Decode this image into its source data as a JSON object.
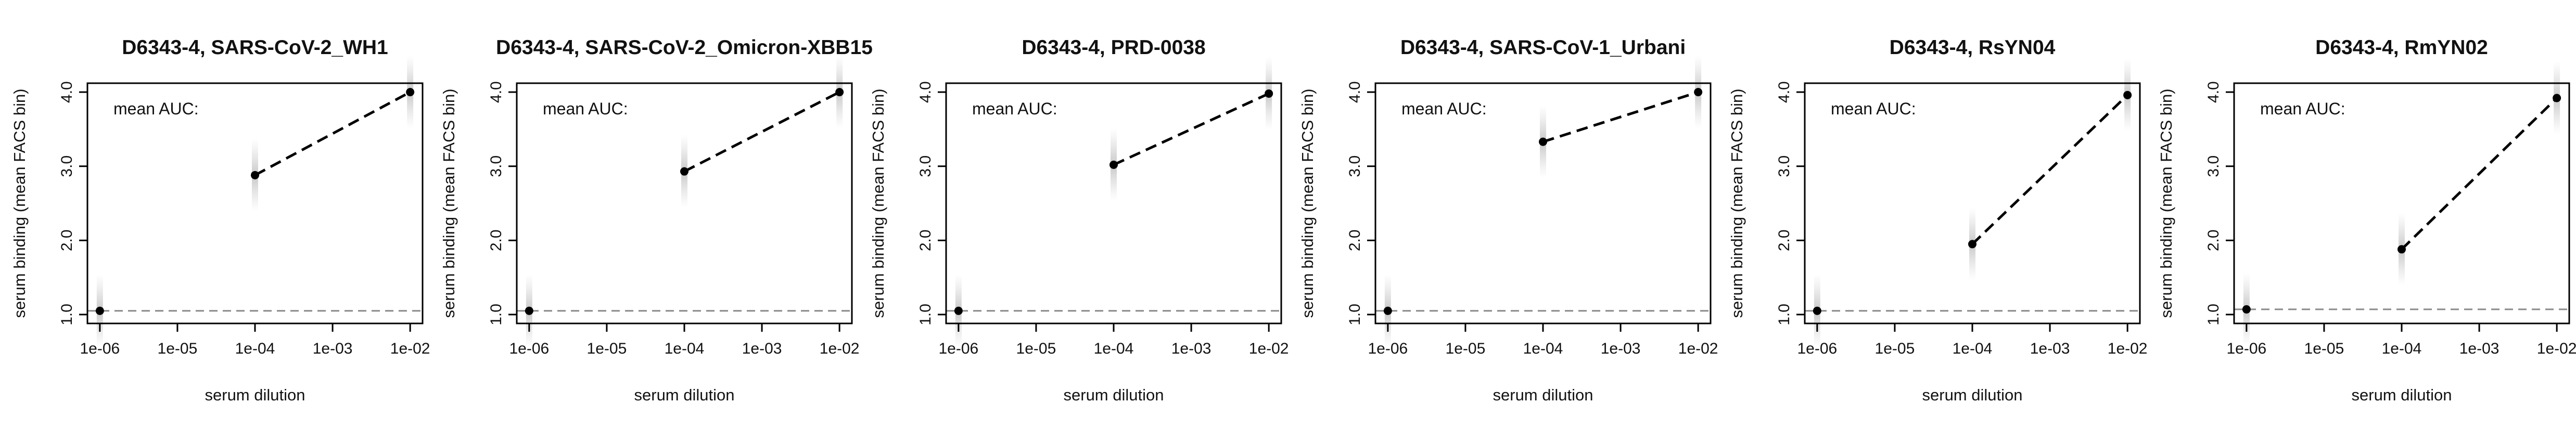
{
  "chart_data": [
    {
      "type": "line",
      "title": "D6343-4, SARS-CoV-2_WH1",
      "xlabel": "serum dilution",
      "ylabel": "serum binding (mean FACS bin)",
      "annotation": "mean AUC:",
      "x_scale": "log10",
      "xlim": [
        1e-06,
        0.01
      ],
      "ylim": [
        1.0,
        4.0
      ],
      "x_tick_labels": [
        "1e-06",
        "1e-05",
        "1e-04",
        "1e-03",
        "1e-02"
      ],
      "y_tick_labels": [
        "1.0",
        "2.0",
        "3.0",
        "4.0"
      ],
      "baseline": 1.05,
      "points": [
        {
          "x": 1e-06,
          "y": 1.05
        },
        {
          "x": 0.0001,
          "y": 2.88
        },
        {
          "x": 0.01,
          "y": 4.0
        }
      ],
      "grid": false
    },
    {
      "type": "line",
      "title": "D6343-4, SARS-CoV-2_Omicron-XBB15",
      "xlabel": "serum dilution",
      "ylabel": "serum binding (mean FACS bin)",
      "annotation": "mean AUC:",
      "x_scale": "log10",
      "xlim": [
        1e-06,
        0.01
      ],
      "ylim": [
        1.0,
        4.0
      ],
      "x_tick_labels": [
        "1e-06",
        "1e-05",
        "1e-04",
        "1e-03",
        "1e-02"
      ],
      "y_tick_labels": [
        "1.0",
        "2.0",
        "3.0",
        "4.0"
      ],
      "baseline": 1.05,
      "points": [
        {
          "x": 1e-06,
          "y": 1.05
        },
        {
          "x": 0.0001,
          "y": 2.93
        },
        {
          "x": 0.01,
          "y": 4.0
        }
      ],
      "grid": false
    },
    {
      "type": "line",
      "title": "D6343-4, PRD-0038",
      "xlabel": "serum dilution",
      "ylabel": "serum binding (mean FACS bin)",
      "annotation": "mean AUC:",
      "x_scale": "log10",
      "xlim": [
        1e-06,
        0.01
      ],
      "ylim": [
        1.0,
        4.0
      ],
      "x_tick_labels": [
        "1e-06",
        "1e-05",
        "1e-04",
        "1e-03",
        "1e-02"
      ],
      "y_tick_labels": [
        "1.0",
        "2.0",
        "3.0",
        "4.0"
      ],
      "baseline": 1.05,
      "points": [
        {
          "x": 1e-06,
          "y": 1.05
        },
        {
          "x": 0.0001,
          "y": 3.02
        },
        {
          "x": 0.01,
          "y": 3.98
        }
      ],
      "grid": false
    },
    {
      "type": "line",
      "title": "D6343-4, SARS-CoV-1_Urbani",
      "xlabel": "serum dilution",
      "ylabel": "serum binding (mean FACS bin)",
      "annotation": "mean AUC:",
      "x_scale": "log10",
      "xlim": [
        1e-06,
        0.01
      ],
      "ylim": [
        1.0,
        4.0
      ],
      "x_tick_labels": [
        "1e-06",
        "1e-05",
        "1e-04",
        "1e-03",
        "1e-02"
      ],
      "y_tick_labels": [
        "1.0",
        "2.0",
        "3.0",
        "4.0"
      ],
      "baseline": 1.05,
      "points": [
        {
          "x": 1e-06,
          "y": 1.05
        },
        {
          "x": 0.0001,
          "y": 3.33
        },
        {
          "x": 0.01,
          "y": 4.0
        }
      ],
      "grid": false
    },
    {
      "type": "line",
      "title": "D6343-4, RsYN04",
      "xlabel": "serum dilution",
      "ylabel": "serum binding (mean FACS bin)",
      "annotation": "mean AUC:",
      "x_scale": "log10",
      "xlim": [
        1e-06,
        0.01
      ],
      "ylim": [
        1.0,
        4.0
      ],
      "x_tick_labels": [
        "1e-06",
        "1e-05",
        "1e-04",
        "1e-03",
        "1e-02"
      ],
      "y_tick_labels": [
        "1.0",
        "2.0",
        "3.0",
        "4.0"
      ],
      "baseline": 1.05,
      "points": [
        {
          "x": 1e-06,
          "y": 1.05
        },
        {
          "x": 0.0001,
          "y": 1.95
        },
        {
          "x": 0.01,
          "y": 3.96
        }
      ],
      "grid": false
    },
    {
      "type": "line",
      "title": "D6343-4, RmYN02",
      "xlabel": "serum dilution",
      "ylabel": "serum binding (mean FACS bin)",
      "annotation": "mean AUC:",
      "x_scale": "log10",
      "xlim": [
        1e-06,
        0.01
      ],
      "ylim": [
        1.0,
        4.0
      ],
      "x_tick_labels": [
        "1e-06",
        "1e-05",
        "1e-04",
        "1e-03",
        "1e-02"
      ],
      "y_tick_labels": [
        "1.0",
        "2.0",
        "3.0",
        "4.0"
      ],
      "baseline": 1.07,
      "points": [
        {
          "x": 1e-06,
          "y": 1.07
        },
        {
          "x": 0.0001,
          "y": 1.88
        },
        {
          "x": 0.01,
          "y": 3.92
        }
      ],
      "grid": false
    }
  ]
}
